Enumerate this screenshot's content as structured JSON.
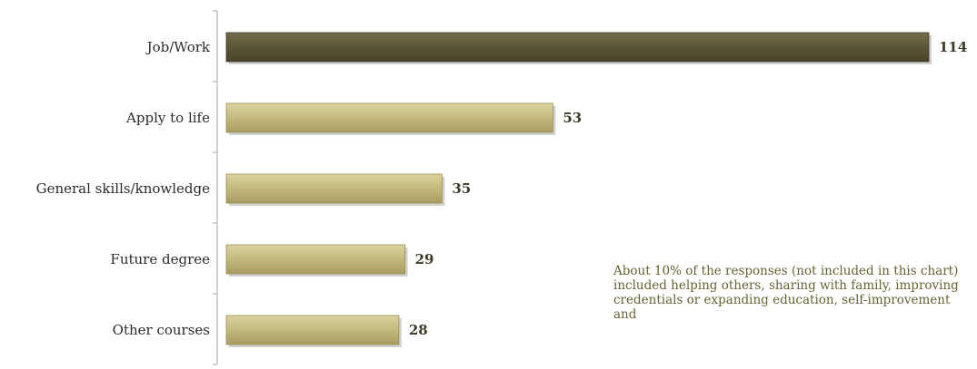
{
  "chart_data": {
    "type": "bar",
    "orientation": "horizontal",
    "categories": [
      "Job/Work",
      "Apply to life",
      "General skills/knowledge",
      "Future degree",
      "Other courses"
    ],
    "values": [
      114,
      53,
      35,
      29,
      28
    ],
    "data_labels": [
      "114",
      "53",
      "35",
      "29",
      "28"
    ],
    "title": "",
    "xlabel": "",
    "ylabel": "",
    "xlim": [
      0,
      114
    ],
    "grid": false,
    "legend": "none"
  },
  "colors": {
    "highlight_bar": "#5e5839",
    "bar": "#c4b879",
    "axis": "#a6a6a6"
  },
  "note": {
    "text": "About 10% of the responses (not included in this chart) included helping others, sharing with family, improving credentials or expanding education, self-improvement and"
  }
}
